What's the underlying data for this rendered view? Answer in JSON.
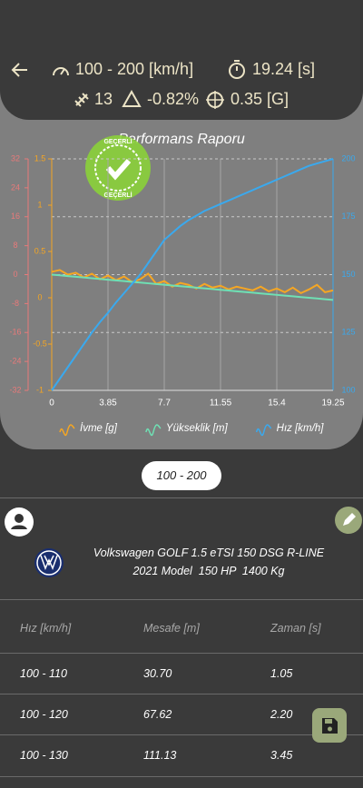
{
  "header": {
    "speed_range": "100 - 200 [km/h]",
    "time": "19.24 [s]",
    "satellites": "13",
    "slope": "-0.82%",
    "gforce": "0.35 [G]"
  },
  "chart_data": {
    "type": "line",
    "title": "Performans Raporu",
    "stamp_text": "GEÇERLİ",
    "x": [
      0,
      0.55,
      1.1,
      1.65,
      2.2,
      2.75,
      3.3,
      3.85,
      4.4,
      4.95,
      5.5,
      6.05,
      6.6,
      7.15,
      7.7,
      8.25,
      8.8,
      9.35,
      9.9,
      10.45,
      11.0,
      11.55,
      12.1,
      12.65,
      13.2,
      13.75,
      14.3,
      14.85,
      15.4,
      15.95,
      16.5,
      17.05,
      17.6,
      18.15,
      18.7,
      19.25
    ],
    "xlim": [
      0,
      19.25
    ],
    "xticks": [
      0,
      3.85,
      7.7,
      11.55,
      15.4,
      19.25
    ],
    "ylim": [
      -1,
      1.5
    ],
    "yticks": [
      -1,
      -0.5,
      0,
      0.5,
      1,
      1.5
    ],
    "y2lim": [
      100,
      200
    ],
    "y2ticks": [
      100,
      125,
      150,
      175,
      200
    ],
    "y3lim": [
      -32,
      32
    ],
    "y3ticks": [
      -32,
      -24,
      -16,
      -8,
      0,
      8,
      16,
      24,
      32
    ],
    "grid": true,
    "series": [
      {
        "name": "İvme [g]",
        "color": "#f5a623",
        "axis": "y",
        "values": [
          0.28,
          0.3,
          0.25,
          0.27,
          0.22,
          0.26,
          0.2,
          0.24,
          0.19,
          0.23,
          0.17,
          0.2,
          0.26,
          0.15,
          0.18,
          0.12,
          0.16,
          0.14,
          0.1,
          0.15,
          0.11,
          0.13,
          0.09,
          0.12,
          0.1,
          0.08,
          0.12,
          0.07,
          0.1,
          0.06,
          0.11,
          0.05,
          0.09,
          0.14,
          0.06,
          0.08
        ]
      },
      {
        "name": "Yükseklik [m]",
        "color": "#6fe0b4",
        "axis": "y3",
        "values": [
          0,
          -0.2,
          -0.4,
          -0.6,
          -0.8,
          -1,
          -1.2,
          -1.4,
          -1.6,
          -1.8,
          -2,
          -2.2,
          -2.4,
          -2.6,
          -2.8,
          -3,
          -3.2,
          -3.4,
          -3.6,
          -3.8,
          -4,
          -4.2,
          -4.4,
          -4.6,
          -4.8,
          -5,
          -5.2,
          -5.4,
          -5.6,
          -5.8,
          -6,
          -6.2,
          -6.4,
          -6.6,
          -6.8,
          -7
        ]
      },
      {
        "name": "Hız [km/h]",
        "color": "#3aa9ee",
        "axis": "y2",
        "values": [
          100,
          105,
          110,
          115,
          120,
          125,
          129.5,
          133.5,
          138,
          142,
          146,
          150,
          155,
          160,
          165,
          168,
          171,
          173.5,
          175.5,
          177.5,
          179,
          180.5,
          182,
          183.5,
          185,
          186.5,
          188,
          189.5,
          191,
          192.5,
          194,
          195.5,
          197,
          198,
          199,
          200
        ]
      }
    ]
  },
  "range_button": "100 - 200",
  "vehicle": {
    "line1": "Volkswagen GOLF 1.5 eTSI 150 DSG R-LINE",
    "line2": "2021 Model  150 HP  1400 Kg"
  },
  "table": {
    "header": [
      "Hız [km/h]",
      "Mesafe [m]",
      "Zaman [s]"
    ],
    "rows": [
      [
        "100 - 110",
        "30.70",
        "1.05"
      ],
      [
        "100 - 120",
        "67.62",
        "2.20"
      ],
      [
        "100 - 130",
        "111.13",
        "3.45"
      ]
    ]
  }
}
